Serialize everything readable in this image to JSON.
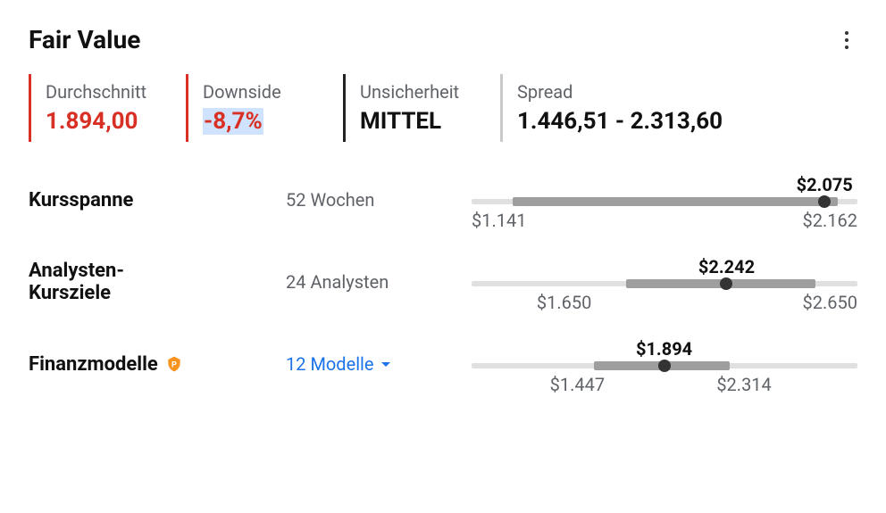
{
  "title": "Fair Value",
  "colors": {
    "red": "#d93025",
    "link": "#1a73e8",
    "muted": "#5f6368",
    "track": "#e0e0e0",
    "fill": "#9e9e9e"
  },
  "stats": {
    "avg": {
      "label": "Durchschnitt",
      "value": "1.894,00",
      "accent": "red"
    },
    "downside": {
      "label": "Downside",
      "value": "-8,7%",
      "accent": "red",
      "highlighted": true
    },
    "uncert": {
      "label": "Unsicherheit",
      "value": "MITTEL",
      "accent": "dark"
    },
    "spread": {
      "label": "Spread",
      "value": "1.446,51 - 2.313,60",
      "accent": "gray"
    }
  },
  "ranges": {
    "w52": {
      "name": "Kursspanne",
      "subtitle": "52 Wochen",
      "low_label": "$1.141",
      "low": 1141,
      "high_label": "$2.162",
      "high": 2162,
      "current_label": "$2.075",
      "current": 2075,
      "fill_from": 1250,
      "fill_to": 2110,
      "chart_min": 1141,
      "chart_max": 2162
    },
    "analyst": {
      "name": "Analysten-\nKursziele",
      "subtitle": "24 Analysten",
      "low_label": "$1.650",
      "low": 1650,
      "high_label": "$2.650",
      "high": 2650,
      "current_label": "$2.242",
      "current": 2242,
      "fill_from": 1930,
      "fill_to": 2520,
      "chart_min": 1447,
      "chart_max": 2650
    },
    "models": {
      "name": "Finanzmodelle",
      "subtitle": "12 Modelle",
      "is_link": true,
      "has_badge": true,
      "low_label": "$1.447",
      "low": 1447,
      "high_label": "$2.314",
      "high": 2314,
      "current_label": "$1.894",
      "current": 1894,
      "fill_from": 1620,
      "fill_to": 2150,
      "chart_min": 1141,
      "chart_max": 2650
    }
  }
}
